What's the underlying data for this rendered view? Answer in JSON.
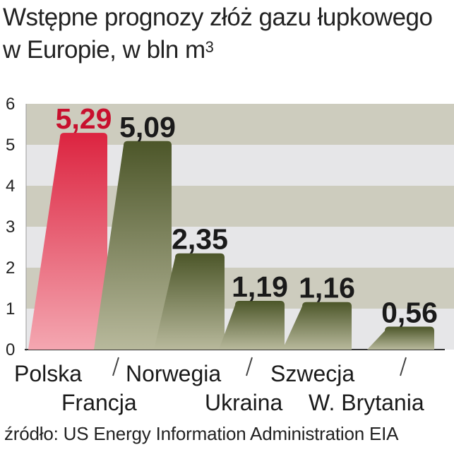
{
  "title": {
    "line1": "Wstępne prognozy złóż gazu łupkowego",
    "line2": "w Europie, w bln m",
    "superscript": "3"
  },
  "source": "źródło: US Energy Information Administration EIA",
  "colors": {
    "highlight": "#d41e3c",
    "bar": "#56612e",
    "highlight_label": "#c8102e",
    "label": "#1a1a1a",
    "band_light": "#e6e6e8",
    "band_olive": "#cdccbe"
  },
  "chart_data": {
    "type": "bar",
    "title": "Wstępne prognozy złóż gazu łupkowego w Europie, w bln m3",
    "ylabel": "",
    "xlabel": "",
    "ylim": [
      0,
      6
    ],
    "yticks": [
      "0",
      "1",
      "2",
      "3",
      "4",
      "5",
      "6"
    ],
    "categories": [
      "Polska",
      "Francja",
      "Norwegia",
      "Ukraina",
      "Szwecja",
      "W. Brytania"
    ],
    "values": [
      5.29,
      5.09,
      2.35,
      1.19,
      1.16,
      0.56
    ],
    "value_labels": [
      "5,29",
      "5,09",
      "2,35",
      "1,19",
      "1,16",
      "0,56"
    ],
    "highlight": [
      "Polska"
    ]
  }
}
